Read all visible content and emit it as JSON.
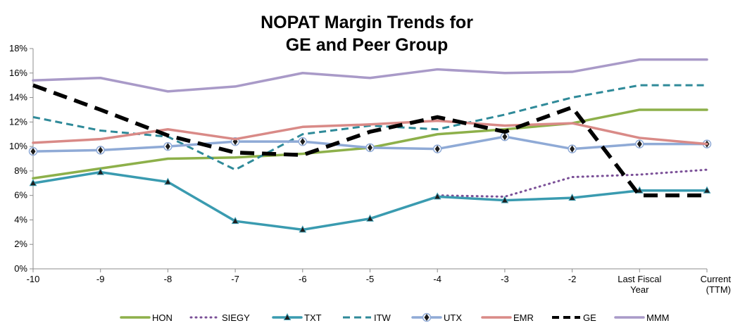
{
  "chart_data": {
    "type": "line",
    "title_lines": [
      "NOPAT Margin Trends for",
      "GE and Peer Group"
    ],
    "xlabel": "",
    "ylabel": "",
    "categories": [
      [
        "-10"
      ],
      [
        "-9"
      ],
      [
        "-8"
      ],
      [
        "-7"
      ],
      [
        "-6"
      ],
      [
        "-5"
      ],
      [
        "-4"
      ],
      [
        "-3"
      ],
      [
        "-2"
      ],
      [
        "Last Fiscal",
        "Year"
      ],
      [
        "Current",
        "(TTM)"
      ]
    ],
    "ylim": [
      0,
      18
    ],
    "ytick_step": 2,
    "ytick_format": "percent",
    "grid": false,
    "legend_position": "bottom",
    "series": [
      {
        "name": "HON",
        "color": "#8db04a",
        "style": "solid",
        "marker": "none",
        "values": [
          7.4,
          8.2,
          9.0,
          9.1,
          9.4,
          9.9,
          11.0,
          11.4,
          11.9,
          13.0,
          13.0
        ]
      },
      {
        "name": "SIEGY",
        "color": "#7a4f97",
        "style": "dotted",
        "marker": "none",
        "values": [
          null,
          null,
          null,
          null,
          null,
          null,
          6.0,
          5.9,
          7.5,
          7.7,
          8.1
        ]
      },
      {
        "name": "TXT",
        "color": "#3a9bb0",
        "style": "solid",
        "marker": "triangle",
        "values": [
          7.0,
          7.9,
          7.1,
          3.9,
          3.2,
          4.1,
          5.9,
          5.6,
          5.8,
          6.4,
          6.4
        ]
      },
      {
        "name": "ITW",
        "color": "#2f8a99",
        "style": "dashed",
        "marker": "none",
        "values": [
          12.4,
          11.3,
          10.8,
          8.1,
          11.0,
          11.7,
          11.4,
          12.6,
          14.0,
          15.0,
          15.0
        ]
      },
      {
        "name": "UTX",
        "color": "#8faad6",
        "style": "solid",
        "marker": "diamond",
        "values": [
          9.6,
          9.7,
          10.0,
          10.4,
          10.4,
          9.9,
          9.8,
          10.8,
          9.8,
          10.2,
          10.2
        ]
      },
      {
        "name": "EMR",
        "color": "#d98a87",
        "style": "solid",
        "marker": "none",
        "values": [
          10.3,
          10.6,
          11.4,
          10.6,
          11.6,
          11.8,
          12.1,
          11.7,
          11.9,
          10.7,
          10.2
        ]
      },
      {
        "name": "GE",
        "color": "#000000",
        "style": "bigdash",
        "marker": "none",
        "values": [
          15.0,
          13.0,
          10.9,
          9.5,
          9.3,
          11.2,
          12.4,
          11.2,
          13.2,
          6.0,
          6.0
        ]
      },
      {
        "name": "MMM",
        "color": "#a99ac8",
        "style": "solid",
        "marker": "none",
        "values": [
          15.4,
          15.6,
          14.5,
          14.9,
          16.0,
          15.6,
          16.3,
          16.0,
          16.1,
          17.1,
          17.1
        ]
      }
    ]
  }
}
